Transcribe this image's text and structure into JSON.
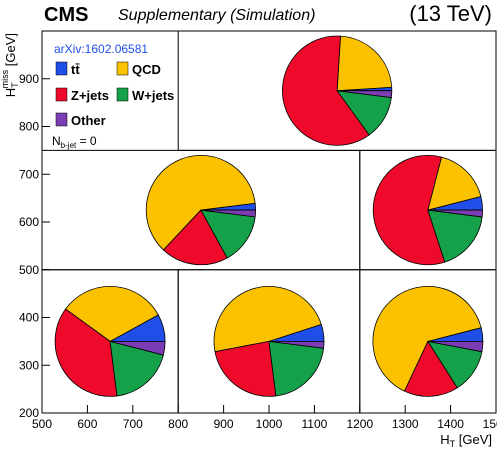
{
  "chart_data": {
    "type": "pie-grid",
    "title": "CMS",
    "subtitle": "Supplementary (Simulation)",
    "energy": "(13 TeV)",
    "reference": "arXiv:1602.06581",
    "selection": {
      "main": "N",
      "sub": "b-jet",
      "rest": " = 0"
    },
    "x_label": {
      "main": "H",
      "sub": "T",
      "unit": " [GeV]"
    },
    "y_label": {
      "main": "H",
      "sub": "T",
      "sup": "miss",
      "unit": " [GeV]"
    },
    "xlim": [
      500,
      1500
    ],
    "ylim": [
      200,
      1000
    ],
    "xticks": [
      500,
      600,
      700,
      800,
      900,
      1000,
      1100,
      1200,
      1300,
      1400,
      1500
    ],
    "yticks": [
      200,
      300,
      400,
      500,
      600,
      700,
      800,
      900
    ],
    "series": [
      {
        "name": "tt̄",
        "color": "#1f4fe8"
      },
      {
        "name": "QCD",
        "color": "#fcc200"
      },
      {
        "name": "Z+jets",
        "color": "#ef0a2b"
      },
      {
        "name": "W+jets",
        "color": "#15a04a"
      },
      {
        "name": "Other",
        "color": "#7b3db3"
      }
    ],
    "cells": [
      {
        "xrange": [
          800,
          1500
        ],
        "yrange": [
          750,
          1000
        ],
        "values": [
          1,
          23,
          61,
          13,
          2
        ]
      },
      {
        "xrange": [
          500,
          1200
        ],
        "yrange": [
          500,
          750
        ],
        "values": [
          2,
          61,
          20,
          15,
          2
        ]
      },
      {
        "xrange": [
          1200,
          1500
        ],
        "yrange": [
          500,
          750
        ],
        "values": [
          4,
          17,
          59,
          18,
          2
        ]
      },
      {
        "xrange": [
          500,
          800
        ],
        "yrange": [
          200,
          500
        ],
        "values": [
          8,
          32,
          37,
          19,
          4
        ]
      },
      {
        "xrange": [
          800,
          1200
        ],
        "yrange": [
          200,
          500
        ],
        "values": [
          5,
          48,
          24,
          21,
          2
        ]
      },
      {
        "xrange": [
          1200,
          1500
        ],
        "yrange": [
          200,
          500
        ],
        "values": [
          4,
          64,
          16,
          13,
          3
        ]
      }
    ]
  }
}
